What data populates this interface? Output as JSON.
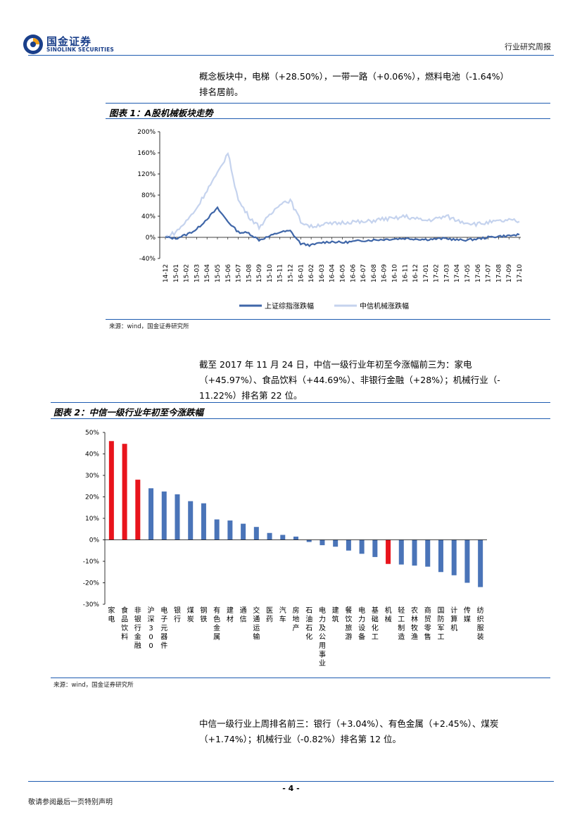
{
  "header": {
    "brand_cn": "国金证券",
    "brand_en": "SINOLINK SECURITIES",
    "report_type": "行业研究周报"
  },
  "paragraphs": {
    "p1_line1": "概念板块中，电梯（+28.50%），一带一路（+0.06%），燃料电池（-1.64%）",
    "p1_line2": "排名居前。",
    "p2_line1": "截至 2017 年 11 月 24 日，中信一级行业年初至今涨幅前三为：家电",
    "p2_line2": "（+45.97%）、食品饮料（+44.69%）、非银行金融（+28%）；机械行业（-",
    "p2_line3": "11.22%）排名第 22 位。",
    "p3_line1": "中信一级行业上周排名前三：银行（+3.04%）、有色金属（+2.45%）、煤炭",
    "p3_line2": "（+1.74%）；机械行业（-0.82%）排名第 12 位。"
  },
  "figure1": {
    "title": "图表 1：A股机械板块走势",
    "source": "来源：wind，国金证券研究所"
  },
  "figure2": {
    "title": "图表 2：中信一级行业年初至今涨跌幅",
    "source": "来源：wind，国金证券研究所"
  },
  "footer": {
    "page": "- 4 -",
    "disclaimer": "敬请参阅最后一页特别声明"
  },
  "colors": {
    "accent_blue": "#1e5bb0",
    "series_dark": "#3f66a8",
    "series_light": "#c5d3ee",
    "bar_blue": "#4a74b8",
    "bar_red": "#e8141c"
  },
  "chart_data": [
    {
      "type": "line",
      "ylim": [
        -40,
        200
      ],
      "yticks": [
        "200%",
        "160%",
        "120%",
        "80%",
        "40%",
        "0%",
        "-40%"
      ],
      "x": [
        "14-12",
        "15-01",
        "15-02",
        "15-03",
        "15-04",
        "15-05",
        "15-06",
        "15-07",
        "15-08",
        "15-09",
        "15-10",
        "15-11",
        "15-12",
        "16-01",
        "16-02",
        "16-03",
        "16-04",
        "16-05",
        "16-06",
        "16-07",
        "16-08",
        "16-09",
        "16-10",
        "16-11",
        "16-12",
        "17-01",
        "17-02",
        "17-03",
        "17-04",
        "17-05",
        "17-06",
        "17-07",
        "17-08",
        "17-09",
        "17-10"
      ],
      "series": [
        {
          "name": "上证综指涨跌幅",
          "values": [
            0,
            -2,
            5,
            15,
            35,
            55,
            30,
            10,
            8,
            -5,
            2,
            10,
            12,
            -12,
            -15,
            -10,
            -8,
            -10,
            -8,
            -6,
            -5,
            -4,
            -3,
            -2,
            -3,
            -4,
            -3,
            -2,
            -5,
            -5,
            -3,
            0,
            2,
            3,
            5
          ]
        },
        {
          "name": "中信机械涨跌幅",
          "values": [
            0,
            10,
            30,
            55,
            90,
            120,
            160,
            70,
            40,
            20,
            40,
            65,
            70,
            30,
            20,
            25,
            25,
            28,
            30,
            28,
            32,
            35,
            35,
            40,
            35,
            32,
            35,
            40,
            32,
            28,
            25,
            28,
            30,
            32,
            30
          ]
        }
      ]
    },
    {
      "type": "bar",
      "ylim": [
        -30,
        50
      ],
      "yticks": [
        "50%",
        "40%",
        "30%",
        "20%",
        "10%",
        "0%",
        "-10%",
        "-20%",
        "-30%"
      ],
      "categories": [
        "家电",
        "食品饮料",
        "非银行金融",
        "沪深300",
        "电子元器件",
        "银行",
        "煤炭",
        "钢铁",
        "有色金属",
        "建材",
        "通信",
        "交通运输",
        "医药",
        "汽车",
        "房地产",
        "石油石化",
        "电力及公用事业",
        "建筑",
        "餐饮旅游",
        "电力设备",
        "基础化工",
        "机械",
        "轻工制造",
        "农林牧渔",
        "商贸零售",
        "国防军工",
        "计算机",
        "传媒",
        "纺织服装"
      ],
      "values": [
        45.97,
        44.69,
        28,
        24,
        22.5,
        21.2,
        18,
        17,
        9.5,
        9,
        7.5,
        6,
        3.2,
        2.3,
        1.5,
        -1,
        -2.5,
        -3.2,
        -5,
        -6.5,
        -8,
        -11.22,
        -11.5,
        -12,
        -12.5,
        -15,
        -16.5,
        -20,
        -22
      ]
    }
  ]
}
